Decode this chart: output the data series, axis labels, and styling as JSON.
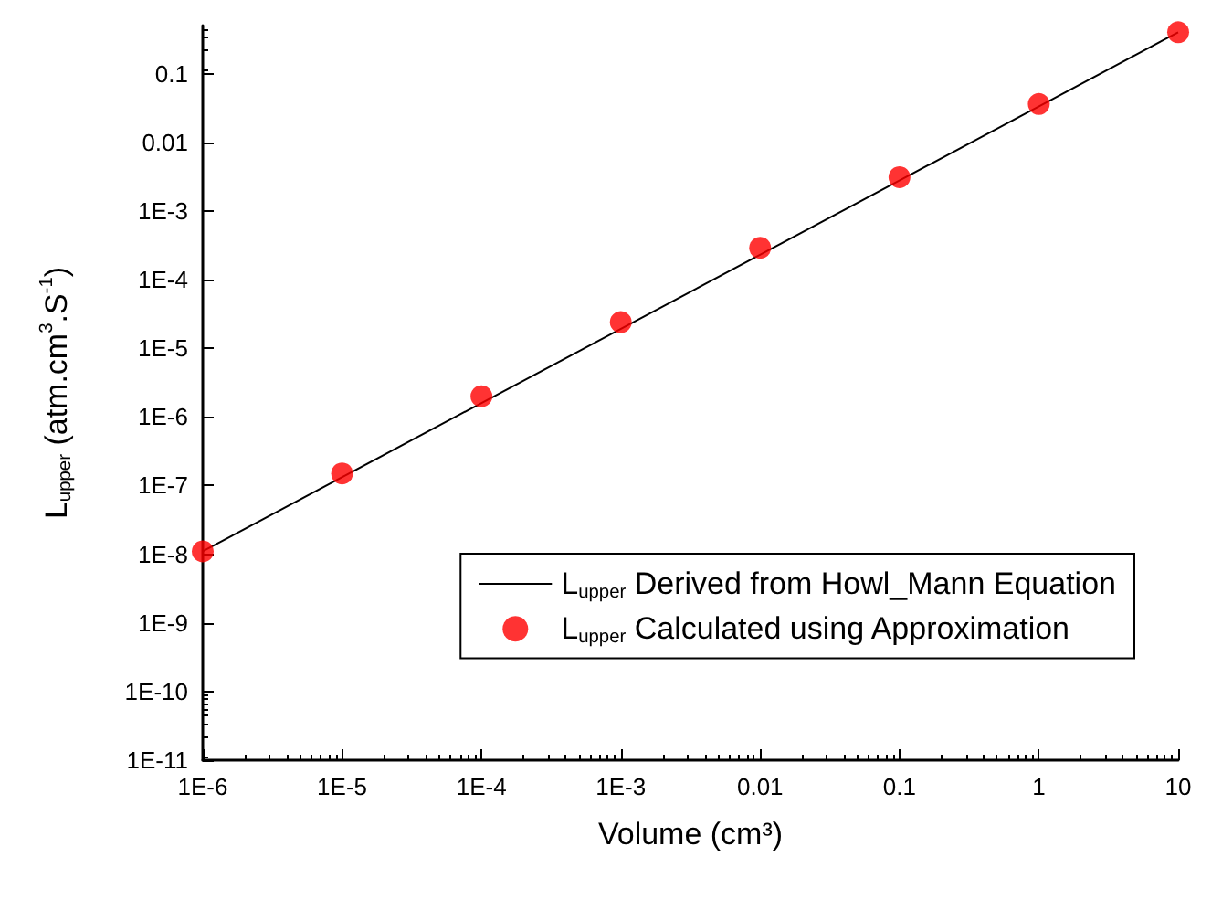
{
  "chart_data": {
    "type": "scatter",
    "xlabel": "Volume (cm³)",
    "ylabel": "L$_{upper}$ (atm.cm$^{3}$.S$^{-1}$)",
    "log": "xy",
    "legend": "bottom right",
    "grid": false,
    "xlim": [
      1e-06,
      10
    ],
    "ylim": [
      1e-11,
      0.5
    ],
    "xticks": [
      {
        "value": 1e-06,
        "label": "1E-6"
      },
      {
        "value": 1e-05,
        "label": "1E-5"
      },
      {
        "value": 0.0001,
        "label": "1E-4"
      },
      {
        "value": 0.001,
        "label": "1E-3"
      },
      0.01,
      0.1,
      1,
      10
    ],
    "yticks": [
      {
        "value": 1e-11,
        "label": "1E-11"
      },
      {
        "value": 1e-10,
        "label": "1E-10"
      },
      {
        "value": 1e-09,
        "label": "1E-9"
      },
      {
        "value": 1e-08,
        "label": "1E-8"
      },
      {
        "value": 1e-07,
        "label": "1E-7"
      },
      {
        "value": 1e-06,
        "label": "1E-6"
      },
      {
        "value": 1e-05,
        "label": "1E-5"
      },
      {
        "value": 0.0001,
        "label": "1E-4"
      },
      {
        "value": 0.001,
        "label": "1E-3"
      },
      0.01,
      0.1
    ],
    "series": [
      {
        "name": "L$_{upper}$ Derived from Howl_Mann Equation",
        "type": "line",
        "marker": "none",
        "color": "#000000",
        "x": [
          1e-06,
          10
        ],
        "values": [
          1.1e-08,
          0.4
        ]
      },
      {
        "name": "L$_{upper}$ Calculated using Approximation",
        "marker": "circle",
        "color": "#ff0000",
        "x": [
          1e-06,
          1e-05,
          0.0001,
          0.001,
          0.01,
          0.1,
          1,
          10
        ],
        "values": [
          1.1e-08,
          1.5e-07,
          2e-06,
          2.4e-05,
          0.00029,
          0.0031,
          0.036,
          0.4
        ]
      }
    ]
  }
}
